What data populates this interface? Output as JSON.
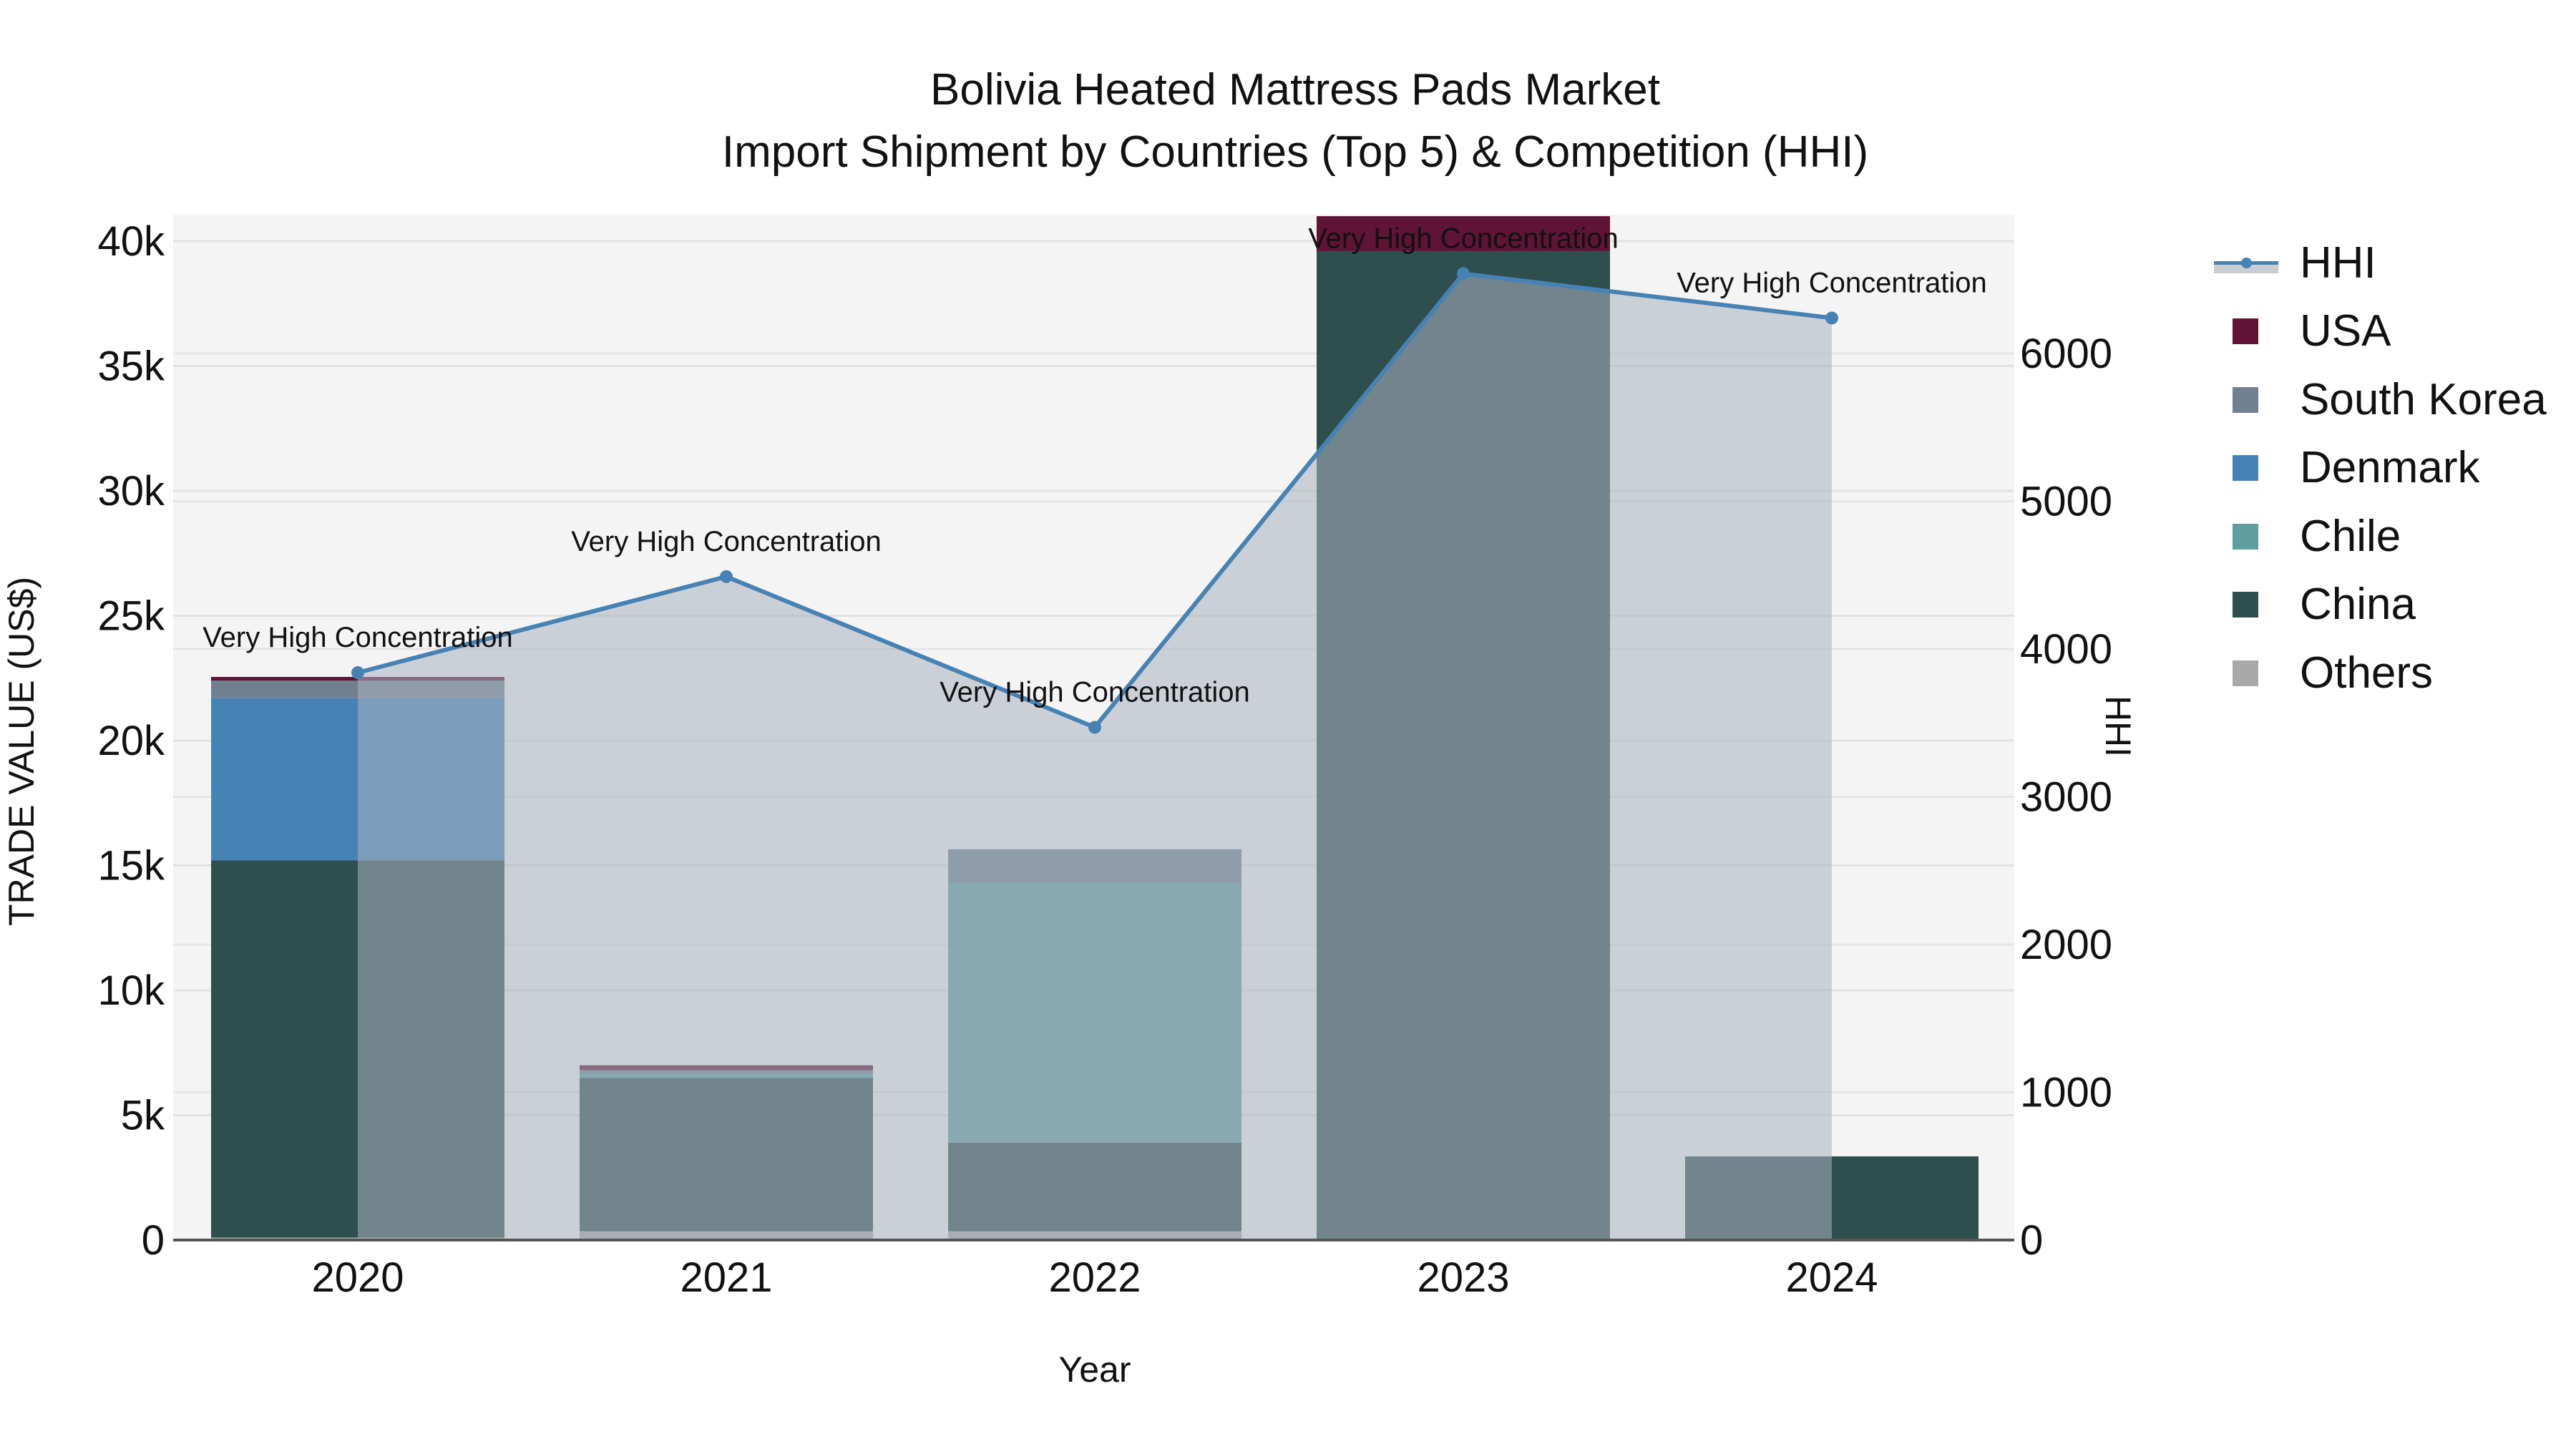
{
  "title": {
    "line1": "Bolivia Heated Mattress Pads Market",
    "line2": "Import Shipment by Countries (Top 5) & Competition (HHI)"
  },
  "axes": {
    "x_title": "Year",
    "y_title": "TRADE VALUE (US$)",
    "y2_title": "HHI",
    "y_ticks": [
      "0",
      "5k",
      "10k",
      "15k",
      "20k",
      "25k",
      "30k",
      "35k",
      "40k"
    ],
    "y2_ticks": [
      "0",
      "1000",
      "2000",
      "3000",
      "4000",
      "5000",
      "6000"
    ],
    "x_ticks": [
      "2020",
      "2021",
      "2022",
      "2023",
      "2024"
    ]
  },
  "legend": [
    {
      "label": "HHI",
      "type": "line",
      "color": "#4682b4"
    },
    {
      "label": "USA",
      "type": "bar",
      "color": "#5f1436"
    },
    {
      "label": "South Korea",
      "type": "bar",
      "color": "#708090"
    },
    {
      "label": "Denmark",
      "type": "bar",
      "color": "#4682b4"
    },
    {
      "label": "Chile",
      "type": "bar",
      "color": "#5f9ea0"
    },
    {
      "label": "China",
      "type": "bar",
      "color": "#2f4f4f"
    },
    {
      "label": "Others",
      "type": "bar",
      "color": "#a9a9a9"
    }
  ],
  "annotations": [
    {
      "year": "2020",
      "text": "Very High Concentration"
    },
    {
      "year": "2021",
      "text": "Very High Concentration"
    },
    {
      "year": "2022",
      "text": "Very High Concentration"
    },
    {
      "year": "2023",
      "text": "Very High Concentration"
    },
    {
      "year": "2024",
      "text": "Very High Concentration"
    }
  ],
  "chart_data": {
    "type": "bar",
    "subtype": "stacked bar + line (secondary axis)",
    "title": "Bolivia Heated Mattress Pads Market - Import Shipment by Countries (Top 5) & Competition (HHI)",
    "xlabel": "Year",
    "ylabel": "TRADE VALUE (US$)",
    "y2label": "HHI",
    "categories": [
      "2020",
      "2021",
      "2022",
      "2023",
      "2024"
    ],
    "ylim": [
      0,
      43000
    ],
    "y2lim": [
      0,
      6900
    ],
    "grid": true,
    "legend_position": "right",
    "series": [
      {
        "name": "Others",
        "type": "bar",
        "color": "#a9a9a9",
        "values": [
          100,
          350,
          350,
          0,
          0
        ]
      },
      {
        "name": "China",
        "type": "bar",
        "color": "#2f4f4f",
        "values": [
          15100,
          6150,
          3550,
          39600,
          3350
        ]
      },
      {
        "name": "Chile",
        "type": "bar",
        "color": "#5f9ea0",
        "values": [
          0,
          150,
          10400,
          0,
          0
        ]
      },
      {
        "name": "Denmark",
        "type": "bar",
        "color": "#4682b4",
        "values": [
          6500,
          0,
          0,
          0,
          0
        ]
      },
      {
        "name": "South Korea",
        "type": "bar",
        "color": "#708090",
        "values": [
          700,
          150,
          1350,
          0,
          0
        ]
      },
      {
        "name": "USA",
        "type": "bar",
        "color": "#5f1436",
        "values": [
          150,
          200,
          0,
          1400,
          0
        ]
      },
      {
        "name": "HHI",
        "type": "line",
        "axis": "y2",
        "color": "#4682b4",
        "values": [
          3840,
          4490,
          3470,
          6540,
          6240
        ]
      }
    ],
    "annotations": [
      "Very High Concentration",
      "Very High Concentration",
      "Very High Concentration",
      "Very High Concentration",
      "Very High Concentration"
    ]
  }
}
